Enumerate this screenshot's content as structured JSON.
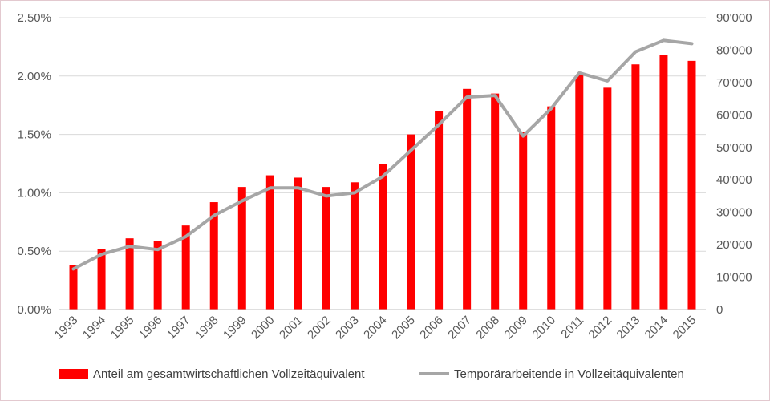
{
  "chart_data": {
    "type": "bar",
    "categories": [
      "1993",
      "1994",
      "1995",
      "1996",
      "1997",
      "1998",
      "1999",
      "2000",
      "2001",
      "2002",
      "2003",
      "2004",
      "2005",
      "2006",
      "2007",
      "2008",
      "2009",
      "2010",
      "2011",
      "2012",
      "2013",
      "2014",
      "2015"
    ],
    "series": [
      {
        "name": "Anteil am gesamtwirtschaftlichen Vollzeitäquivalent",
        "type": "bar",
        "axis": "left",
        "color": "#ff0000",
        "values": [
          0.0038,
          0.0052,
          0.0061,
          0.0059,
          0.0072,
          0.0092,
          0.0105,
          0.0115,
          0.0113,
          0.0105,
          0.0109,
          0.0125,
          0.015,
          0.017,
          0.0189,
          0.0185,
          0.0152,
          0.0174,
          0.0201,
          0.019,
          0.021,
          0.0218,
          0.0213
        ]
      },
      {
        "name": "Temporärarbeitende in Vollzeitäquivalenten",
        "type": "line",
        "axis": "right",
        "color": "#a6a6a6",
        "values": [
          12500,
          17000,
          19500,
          18500,
          22500,
          29000,
          33500,
          37500,
          37500,
          35000,
          36000,
          41000,
          49000,
          57000,
          65500,
          66000,
          53500,
          62000,
          73000,
          70500,
          79500,
          83000,
          82000
        ]
      }
    ],
    "y_left": {
      "ylim": [
        0,
        0.025
      ],
      "ticks": [
        "0.00%",
        "0.50%",
        "1.00%",
        "1.50%",
        "2.00%",
        "2.50%"
      ]
    },
    "y_right": {
      "ylim": [
        0,
        90000
      ],
      "ticks": [
        "0",
        "10'000",
        "20'000",
        "30'000",
        "40'000",
        "50'000",
        "60'000",
        "70'000",
        "80'000",
        "90'000"
      ]
    },
    "grid": true,
    "legend_position": "bottom",
    "title": "",
    "xlabel": "",
    "ylabel": ""
  }
}
